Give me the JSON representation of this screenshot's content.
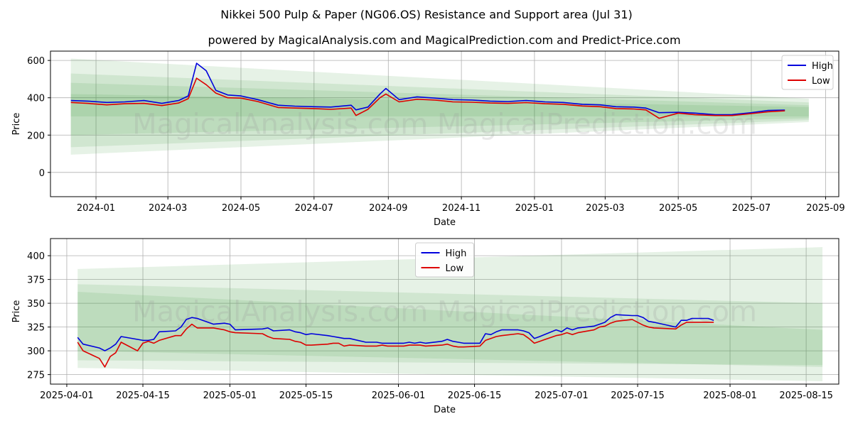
{
  "title": "Nikkei 500 Pulp & Paper (NG06.OS) Resistance and Support area (Jul 31)",
  "subtitle": "powered by MagicalAnalysis.com and MagicalPrediction.com and Predict-Price.com",
  "watermark": "MagicalAnalysis.com    MagicalPrediction.com",
  "colors": {
    "high": "#0000dd",
    "low": "#dd0000",
    "band": "#3a9a3a"
  },
  "chart_data": [
    {
      "type": "line",
      "xlabel": "Date",
      "ylabel": "Price",
      "ylim": [
        -130,
        650
      ],
      "xlim": [
        "2023-11-24",
        "2025-09-12"
      ],
      "yticks": [
        0,
        200,
        400,
        600
      ],
      "xticks": [
        "2024-01",
        "2024-03",
        "2024-05",
        "2024-07",
        "2024-09",
        "2024-11",
        "2025-01",
        "2025-03",
        "2025-05",
        "2025-07",
        "2025-09"
      ],
      "xtick_dates": [
        "2024-01-01",
        "2024-03-01",
        "2024-05-01",
        "2024-07-01",
        "2024-09-01",
        "2024-11-01",
        "2025-01-01",
        "2025-03-01",
        "2025-05-01",
        "2025-07-01",
        "2025-09-01"
      ],
      "legend": {
        "position": "top-right",
        "entries": [
          "High",
          "Low"
        ]
      },
      "grid": true,
      "band_range": [
        "2023-12-11",
        "2025-08-18"
      ],
      "bands": [
        {
          "start": [
            95,
            610
          ],
          "end": [
            270,
            395
          ]
        },
        {
          "start": [
            135,
            530
          ],
          "end": [
            280,
            375
          ]
        },
        {
          "start": [
            200,
            480
          ],
          "end": [
            290,
            360
          ]
        },
        {
          "start": [
            300,
            420
          ],
          "end": [
            300,
            350
          ]
        }
      ],
      "series": [
        {
          "name": "High",
          "x": [
            "2023-12-11",
            "2023-12-25",
            "2024-01-10",
            "2024-01-25",
            "2024-02-10",
            "2024-02-25",
            "2024-03-10",
            "2024-03-18",
            "2024-03-25",
            "2024-04-02",
            "2024-04-10",
            "2024-04-20",
            "2024-05-01",
            "2024-05-15",
            "2024-06-01",
            "2024-06-15",
            "2024-07-01",
            "2024-07-15",
            "2024-08-01",
            "2024-08-05",
            "2024-08-15",
            "2024-08-25",
            "2024-08-30",
            "2024-09-10",
            "2024-09-25",
            "2024-10-10",
            "2024-10-25",
            "2024-11-10",
            "2024-11-25",
            "2024-12-10",
            "2024-12-25",
            "2025-01-10",
            "2025-01-25",
            "2025-02-10",
            "2025-02-25",
            "2025-03-10",
            "2025-03-25",
            "2025-04-04",
            "2025-04-15",
            "2025-05-01",
            "2025-05-15",
            "2025-06-01",
            "2025-06-15",
            "2025-07-01",
            "2025-07-15",
            "2025-07-29"
          ],
          "values": [
            385,
            382,
            375,
            378,
            385,
            370,
            385,
            410,
            585,
            545,
            440,
            415,
            410,
            390,
            360,
            355,
            352,
            350,
            360,
            335,
            350,
            420,
            450,
            390,
            405,
            398,
            390,
            388,
            382,
            380,
            385,
            378,
            375,
            365,
            362,
            352,
            350,
            345,
            320,
            322,
            318,
            309,
            310,
            320,
            332,
            334
          ]
        },
        {
          "name": "Low",
          "x": [
            "2023-12-11",
            "2023-12-25",
            "2024-01-10",
            "2024-01-25",
            "2024-02-10",
            "2024-02-25",
            "2024-03-10",
            "2024-03-18",
            "2024-03-25",
            "2024-04-02",
            "2024-04-10",
            "2024-04-20",
            "2024-05-01",
            "2024-05-15",
            "2024-06-01",
            "2024-06-15",
            "2024-07-01",
            "2024-07-15",
            "2024-08-01",
            "2024-08-05",
            "2024-08-15",
            "2024-08-25",
            "2024-08-30",
            "2024-09-10",
            "2024-09-25",
            "2024-10-10",
            "2024-10-25",
            "2024-11-10",
            "2024-11-25",
            "2024-12-10",
            "2024-12-25",
            "2025-01-10",
            "2025-01-25",
            "2025-02-10",
            "2025-02-25",
            "2025-03-10",
            "2025-03-25",
            "2025-04-04",
            "2025-04-15",
            "2025-05-01",
            "2025-05-15",
            "2025-06-01",
            "2025-06-15",
            "2025-07-01",
            "2025-07-15",
            "2025-07-29"
          ],
          "values": [
            375,
            370,
            362,
            368,
            370,
            358,
            372,
            395,
            505,
            470,
            425,
            400,
            398,
            380,
            348,
            345,
            342,
            338,
            345,
            305,
            338,
            400,
            420,
            378,
            392,
            388,
            378,
            376,
            372,
            370,
            374,
            368,
            365,
            356,
            352,
            342,
            340,
            335,
            290,
            318,
            309,
            305,
            305,
            315,
            325,
            330
          ]
        }
      ]
    },
    {
      "type": "line",
      "xlabel": "Date",
      "ylabel": "Price",
      "ylim": [
        265,
        418
      ],
      "xlim": [
        "2025-03-29",
        "2025-08-21"
      ],
      "yticks": [
        275,
        300,
        325,
        350,
        375,
        400
      ],
      "xticks": [
        "2025-04-01",
        "2025-04-15",
        "2025-05-01",
        "2025-05-15",
        "2025-06-01",
        "2025-06-15",
        "2025-07-01",
        "2025-07-15",
        "2025-08-01",
        "2025-08-15"
      ],
      "xtick_dates": [
        "2025-04-01",
        "2025-04-15",
        "2025-05-01",
        "2025-05-15",
        "2025-06-01",
        "2025-06-15",
        "2025-07-01",
        "2025-07-15",
        "2025-08-01",
        "2025-08-15"
      ],
      "legend": {
        "position": "top-center",
        "entries": [
          "High",
          "Low"
        ]
      },
      "grid": true,
      "band_range": [
        "2025-04-03",
        "2025-08-18"
      ],
      "bands": [
        {
          "start": [
            282,
            386
          ],
          "end": [
            268,
            409
          ]
        },
        {
          "start": [
            290,
            370
          ],
          "end": [
            285,
            350
          ]
        },
        {
          "start": [
            300,
            362
          ],
          "end": [
            283,
            322
          ]
        }
      ],
      "series": [
        {
          "name": "High",
          "x": [
            "2025-04-03",
            "2025-04-04",
            "2025-04-07",
            "2025-04-08",
            "2025-04-09",
            "2025-04-10",
            "2025-04-11",
            "2025-04-14",
            "2025-04-15",
            "2025-04-16",
            "2025-04-17",
            "2025-04-18",
            "2025-04-21",
            "2025-04-22",
            "2025-04-23",
            "2025-04-24",
            "2025-04-25",
            "2025-04-28",
            "2025-04-30",
            "2025-05-01",
            "2025-05-02",
            "2025-05-07",
            "2025-05-08",
            "2025-05-09",
            "2025-05-12",
            "2025-05-13",
            "2025-05-14",
            "2025-05-15",
            "2025-05-16",
            "2025-05-19",
            "2025-05-20",
            "2025-05-21",
            "2025-05-22",
            "2025-05-23",
            "2025-05-26",
            "2025-05-27",
            "2025-05-28",
            "2025-05-29",
            "2025-05-30",
            "2025-06-02",
            "2025-06-03",
            "2025-06-04",
            "2025-06-05",
            "2025-06-06",
            "2025-06-09",
            "2025-06-10",
            "2025-06-11",
            "2025-06-12",
            "2025-06-13",
            "2025-06-16",
            "2025-06-17",
            "2025-06-18",
            "2025-06-19",
            "2025-06-20",
            "2025-06-23",
            "2025-06-24",
            "2025-06-25",
            "2025-06-26",
            "2025-06-27",
            "2025-06-30",
            "2025-07-01",
            "2025-07-02",
            "2025-07-03",
            "2025-07-04",
            "2025-07-07",
            "2025-07-08",
            "2025-07-09",
            "2025-07-10",
            "2025-07-11",
            "2025-07-14",
            "2025-07-15",
            "2025-07-16",
            "2025-07-17",
            "2025-07-18",
            "2025-07-22",
            "2025-07-23",
            "2025-07-24",
            "2025-07-25",
            "2025-07-28",
            "2025-07-29"
          ],
          "values": [
            314,
            307,
            303,
            300,
            303,
            307,
            315,
            312,
            311,
            311,
            312,
            320,
            321,
            325,
            333,
            335,
            334,
            328,
            329,
            328,
            322,
            323,
            324,
            321,
            322,
            320,
            319,
            317,
            318,
            316,
            315,
            314,
            313,
            313,
            309,
            309,
            309,
            308,
            308,
            308,
            309,
            308,
            309,
            308,
            310,
            312,
            310,
            309,
            308,
            308,
            318,
            317,
            320,
            322,
            322,
            321,
            319,
            313,
            315,
            322,
            320,
            324,
            322,
            324,
            326,
            328,
            330,
            335,
            338,
            337,
            337,
            335,
            331,
            330,
            325,
            332,
            332,
            334,
            334,
            332
          ]
        },
        {
          "name": "Low",
          "x": [
            "2025-04-03",
            "2025-04-04",
            "2025-04-07",
            "2025-04-08",
            "2025-04-09",
            "2025-04-10",
            "2025-04-11",
            "2025-04-14",
            "2025-04-15",
            "2025-04-16",
            "2025-04-17",
            "2025-04-18",
            "2025-04-21",
            "2025-04-22",
            "2025-04-23",
            "2025-04-24",
            "2025-04-25",
            "2025-04-28",
            "2025-04-30",
            "2025-05-01",
            "2025-05-02",
            "2025-05-07",
            "2025-05-08",
            "2025-05-09",
            "2025-05-12",
            "2025-05-13",
            "2025-05-14",
            "2025-05-15",
            "2025-05-16",
            "2025-05-19",
            "2025-05-20",
            "2025-05-21",
            "2025-05-22",
            "2025-05-23",
            "2025-05-26",
            "2025-05-27",
            "2025-05-28",
            "2025-05-29",
            "2025-05-30",
            "2025-06-02",
            "2025-06-03",
            "2025-06-04",
            "2025-06-05",
            "2025-06-06",
            "2025-06-09",
            "2025-06-10",
            "2025-06-11",
            "2025-06-12",
            "2025-06-13",
            "2025-06-16",
            "2025-06-17",
            "2025-06-18",
            "2025-06-19",
            "2025-06-20",
            "2025-06-23",
            "2025-06-24",
            "2025-06-25",
            "2025-06-26",
            "2025-06-27",
            "2025-06-30",
            "2025-07-01",
            "2025-07-02",
            "2025-07-03",
            "2025-07-04",
            "2025-07-07",
            "2025-07-08",
            "2025-07-09",
            "2025-07-10",
            "2025-07-11",
            "2025-07-14",
            "2025-07-15",
            "2025-07-16",
            "2025-07-17",
            "2025-07-18",
            "2025-07-22",
            "2025-07-23",
            "2025-07-24",
            "2025-07-25",
            "2025-07-28",
            "2025-07-29"
          ],
          "values": [
            309,
            300,
            292,
            283,
            294,
            298,
            309,
            300,
            308,
            310,
            308,
            311,
            316,
            316,
            323,
            328,
            324,
            324,
            322,
            320,
            319,
            318,
            315,
            313,
            312,
            310,
            309,
            306,
            306,
            307,
            308,
            308,
            305,
            306,
            305,
            305,
            305,
            306,
            305,
            305,
            306,
            306,
            306,
            305,
            306,
            307,
            305,
            304,
            304,
            305,
            311,
            313,
            315,
            316,
            318,
            317,
            313,
            308,
            310,
            316,
            317,
            319,
            317,
            319,
            322,
            325,
            326,
            329,
            331,
            333,
            330,
            327,
            325,
            324,
            323,
            327,
            330,
            330,
            330,
            330
          ]
        }
      ]
    }
  ]
}
